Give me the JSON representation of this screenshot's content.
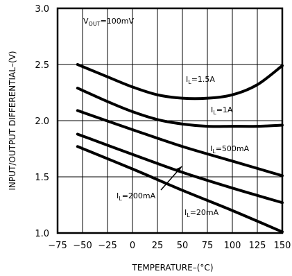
{
  "chart_data": {
    "type": "line",
    "title": "",
    "xlabel": "TEMPERATURE–(",
    "xlabel_unit": "°C",
    "xlabel_close": ")",
    "ylabel": "INPUT/OUTPUT DIFFERENTIAL–(V)",
    "xlim": [
      -75,
      150
    ],
    "ylim": [
      1.0,
      3.0
    ],
    "x_ticks": [
      -75,
      -50,
      -25,
      0,
      25,
      50,
      75,
      100,
      125,
      150
    ],
    "x_tick_labels": [
      "−75",
      "−50",
      "−25",
      "0",
      "25",
      "50",
      "75",
      "100",
      "125",
      "150"
    ],
    "y_ticks": [
      1.0,
      1.5,
      2.0,
      2.5,
      3.0
    ],
    "y_tick_labels": [
      "1.0",
      "1.5",
      "2.0",
      "2.5",
      "3.0"
    ],
    "grid": true,
    "annotation": {
      "prefix": "V",
      "subscript": "OUT",
      "suffix": "=100mV"
    },
    "series": [
      {
        "label_prefix": "I",
        "label_subscript": "L",
        "label_suffix": "=1.5A",
        "x": [
          -55,
          -25,
          0,
          25,
          50,
          75,
          100,
          125,
          150
        ],
        "y": [
          2.5,
          2.39,
          2.3,
          2.23,
          2.2,
          2.2,
          2.23,
          2.32,
          2.49
        ]
      },
      {
        "label_prefix": "I",
        "label_subscript": "L",
        "label_suffix": "=1A",
        "x": [
          -55,
          -25,
          0,
          25,
          50,
          75,
          100,
          125,
          150
        ],
        "y": [
          2.29,
          2.17,
          2.08,
          2.01,
          1.97,
          1.95,
          1.95,
          1.95,
          1.96
        ]
      },
      {
        "label_prefix": "I",
        "label_subscript": "L",
        "label_suffix": "=500mA",
        "x": [
          -55,
          0,
          50,
          100,
          150
        ],
        "y": [
          2.09,
          1.92,
          1.77,
          1.64,
          1.51
        ]
      },
      {
        "label_prefix": "I",
        "label_subscript": "L",
        "label_suffix": "=200mA",
        "x": [
          -55,
          0,
          50,
          100,
          150
        ],
        "y": [
          1.88,
          1.7,
          1.54,
          1.4,
          1.27
        ]
      },
      {
        "label_prefix": "I",
        "label_subscript": "L",
        "label_suffix": "=20mA",
        "x": [
          -55,
          0,
          50,
          100,
          150
        ],
        "y": [
          1.77,
          1.57,
          1.38,
          1.2,
          1.01
        ]
      }
    ]
  }
}
